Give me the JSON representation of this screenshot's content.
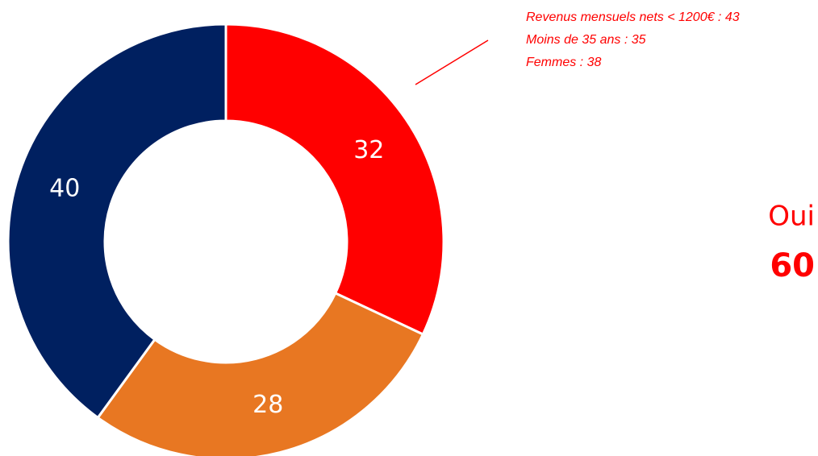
{
  "chart_data": {
    "type": "donut",
    "values": [
      32,
      28,
      40
    ],
    "colors": [
      "#ff0000",
      "#e87722",
      "#002060"
    ],
    "annotations": [
      "Revenus mensuels nets < 1200€ : 43",
      "Moins de 35 ans : 35",
      "Femmes : 38"
    ],
    "total_label": "Oui",
    "total_value": 60
  }
}
